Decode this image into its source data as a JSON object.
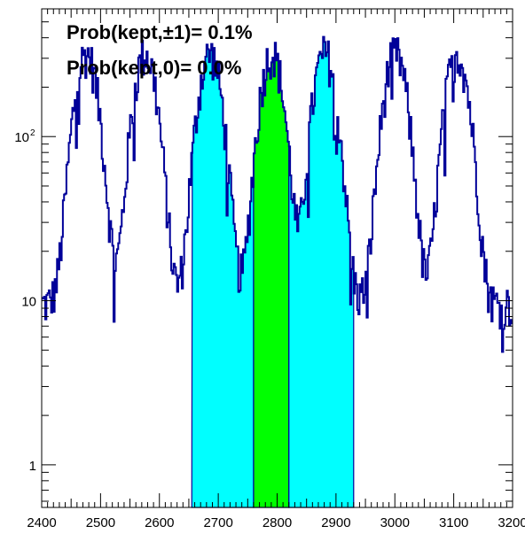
{
  "chart_data": {
    "type": "area",
    "log_y": true,
    "x_range": [
      2400,
      3200
    ],
    "y_range": [
      0.55,
      600
    ],
    "x_ticks": [
      "2400",
      "2500",
      "2600",
      "2700",
      "2800",
      "2900",
      "3000",
      "3100",
      "3200"
    ],
    "y_ticks": [
      {
        "value": 1,
        "label": "1"
      },
      {
        "value": 10,
        "label": "10"
      },
      {
        "value": 100,
        "label": "10",
        "sup": "2"
      }
    ],
    "annotations": [
      "Prob(kept,±1)= 0.1%",
      "Prob(kept,0)= 0.0%"
    ],
    "peaks_x": [
      2475,
      2575,
      2685,
      2790,
      2880,
      3000,
      3105
    ],
    "peak_height": 310,
    "peak_sigma": 17,
    "baseline": 9.5,
    "series": [
      {
        "values": []
      }
    ],
    "shaded_regions": [
      {
        "x_from": 2655,
        "x_to": 2760,
        "color": "#00ffff"
      },
      {
        "x_from": 2760,
        "x_to": 2820,
        "color": "#00ff00"
      },
      {
        "x_from": 2820,
        "x_to": 2930,
        "color": "#00ffff"
      }
    ],
    "line_color": "#000099"
  }
}
